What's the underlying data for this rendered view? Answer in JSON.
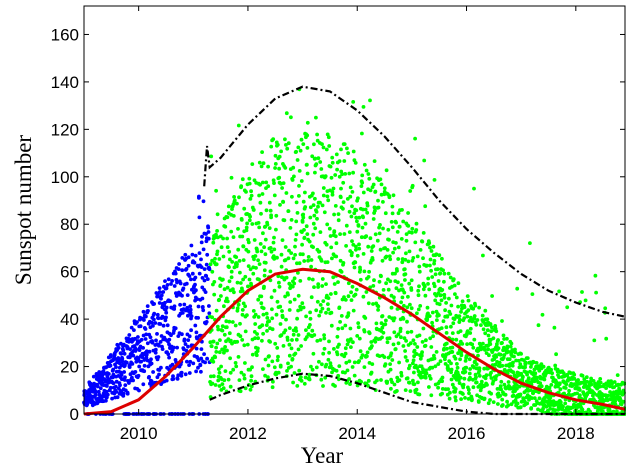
{
  "chart_data": {
    "type": "scatter",
    "xlabel": "Year",
    "ylabel": "Sunspot number",
    "xlim": [
      2009.0,
      2018.9
    ],
    "ylim": [
      0,
      172
    ],
    "xticks": [
      2010,
      2012,
      2014,
      2016,
      2018
    ],
    "yticks": [
      0,
      20,
      40,
      60,
      80,
      100,
      120,
      140,
      160
    ],
    "grid": false,
    "colors": {
      "observed_before": "#0000ff",
      "observed_after": "#00ff00",
      "fit": "#dd0000",
      "bounds": "#000000"
    },
    "observed_split_year": 2011.3,
    "fit_curve": {
      "x": [
        2009.0,
        2009.5,
        2010.0,
        2010.5,
        2011.0,
        2011.5,
        2012.0,
        2012.5,
        2013.0,
        2013.5,
        2014.0,
        2014.5,
        2015.0,
        2015.5,
        2016.0,
        2016.5,
        2017.0,
        2017.5,
        2018.0,
        2018.5,
        2018.9
      ],
      "y": [
        0,
        1,
        6,
        16,
        28,
        41,
        52,
        59,
        61,
        60,
        55,
        49,
        42,
        34,
        26,
        19,
        13,
        9,
        6,
        4,
        2
      ]
    },
    "upper_bound": {
      "x": [
        2011.2,
        2011.25,
        2011.3,
        2011.5,
        2012.0,
        2012.5,
        2013.0,
        2013.5,
        2014.0,
        2014.5,
        2015.0,
        2015.5,
        2016.0,
        2016.5,
        2017.0,
        2017.5,
        2018.0,
        2018.5,
        2018.9
      ],
      "y": [
        96,
        113,
        104,
        108,
        122,
        133,
        138,
        136,
        128,
        117,
        104,
        90,
        78,
        68,
        59,
        52,
        47,
        43,
        41
      ]
    },
    "lower_bound": {
      "x": [
        2011.3,
        2011.5,
        2012.0,
        2012.5,
        2013.0,
        2013.5,
        2014.0,
        2014.5,
        2015.0,
        2015.5,
        2016.0,
        2016.5,
        2017.0,
        2017.5,
        2018.0,
        2018.5,
        2018.9
      ],
      "y": [
        6,
        8,
        12,
        15,
        17,
        16,
        13,
        9,
        5,
        3,
        1,
        0,
        0,
        0,
        0,
        0,
        0
      ]
    }
  }
}
